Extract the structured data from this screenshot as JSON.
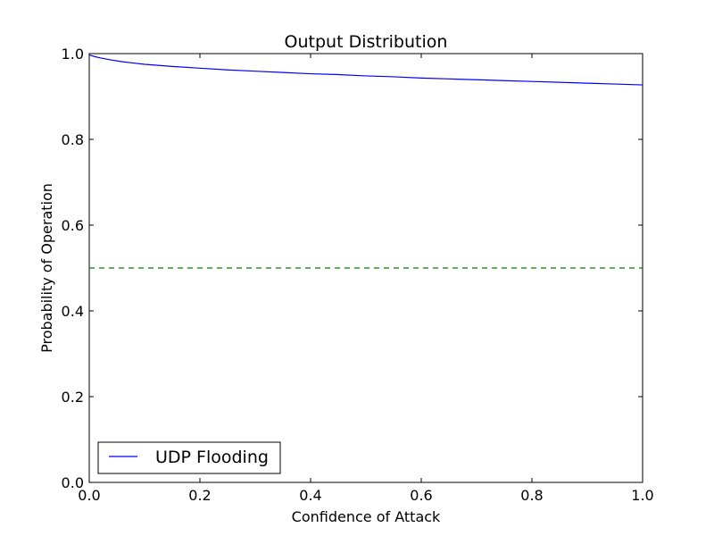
{
  "chart_data": {
    "type": "line",
    "title": "Output Distribution",
    "xlabel": "Confidence of Attack",
    "ylabel": "Probability of Operation",
    "xlim": [
      0.0,
      1.0
    ],
    "ylim": [
      0.0,
      1.0
    ],
    "x_ticks": [
      "0.0",
      "0.2",
      "0.4",
      "0.6",
      "0.8",
      "1.0"
    ],
    "y_ticks": [
      "0.0",
      "0.2",
      "0.4",
      "0.6",
      "0.8",
      "1.0"
    ],
    "grid": false,
    "legend_position": "lower-left",
    "series": [
      {
        "name": "UDP Flooding",
        "color": "#0000ff",
        "style": "solid",
        "x": [
          0.0,
          0.005,
          0.01,
          0.02,
          0.04,
          0.06,
          0.08,
          0.1,
          0.15,
          0.2,
          0.25,
          0.3,
          0.35,
          0.4,
          0.45,
          0.5,
          0.55,
          0.6,
          0.65,
          0.7,
          0.75,
          0.8,
          0.85,
          0.9,
          0.95,
          1.0
        ],
        "y": [
          0.997,
          0.995,
          0.993,
          0.99,
          0.985,
          0.981,
          0.978,
          0.975,
          0.97,
          0.966,
          0.962,
          0.959,
          0.956,
          0.953,
          0.951,
          0.948,
          0.946,
          0.943,
          0.941,
          0.939,
          0.937,
          0.935,
          0.933,
          0.931,
          0.929,
          0.927
        ]
      },
      {
        "color": "#008000",
        "style": "dashed",
        "x": [
          0.0,
          1.0
        ],
        "y": [
          0.5,
          0.5
        ]
      }
    ]
  }
}
